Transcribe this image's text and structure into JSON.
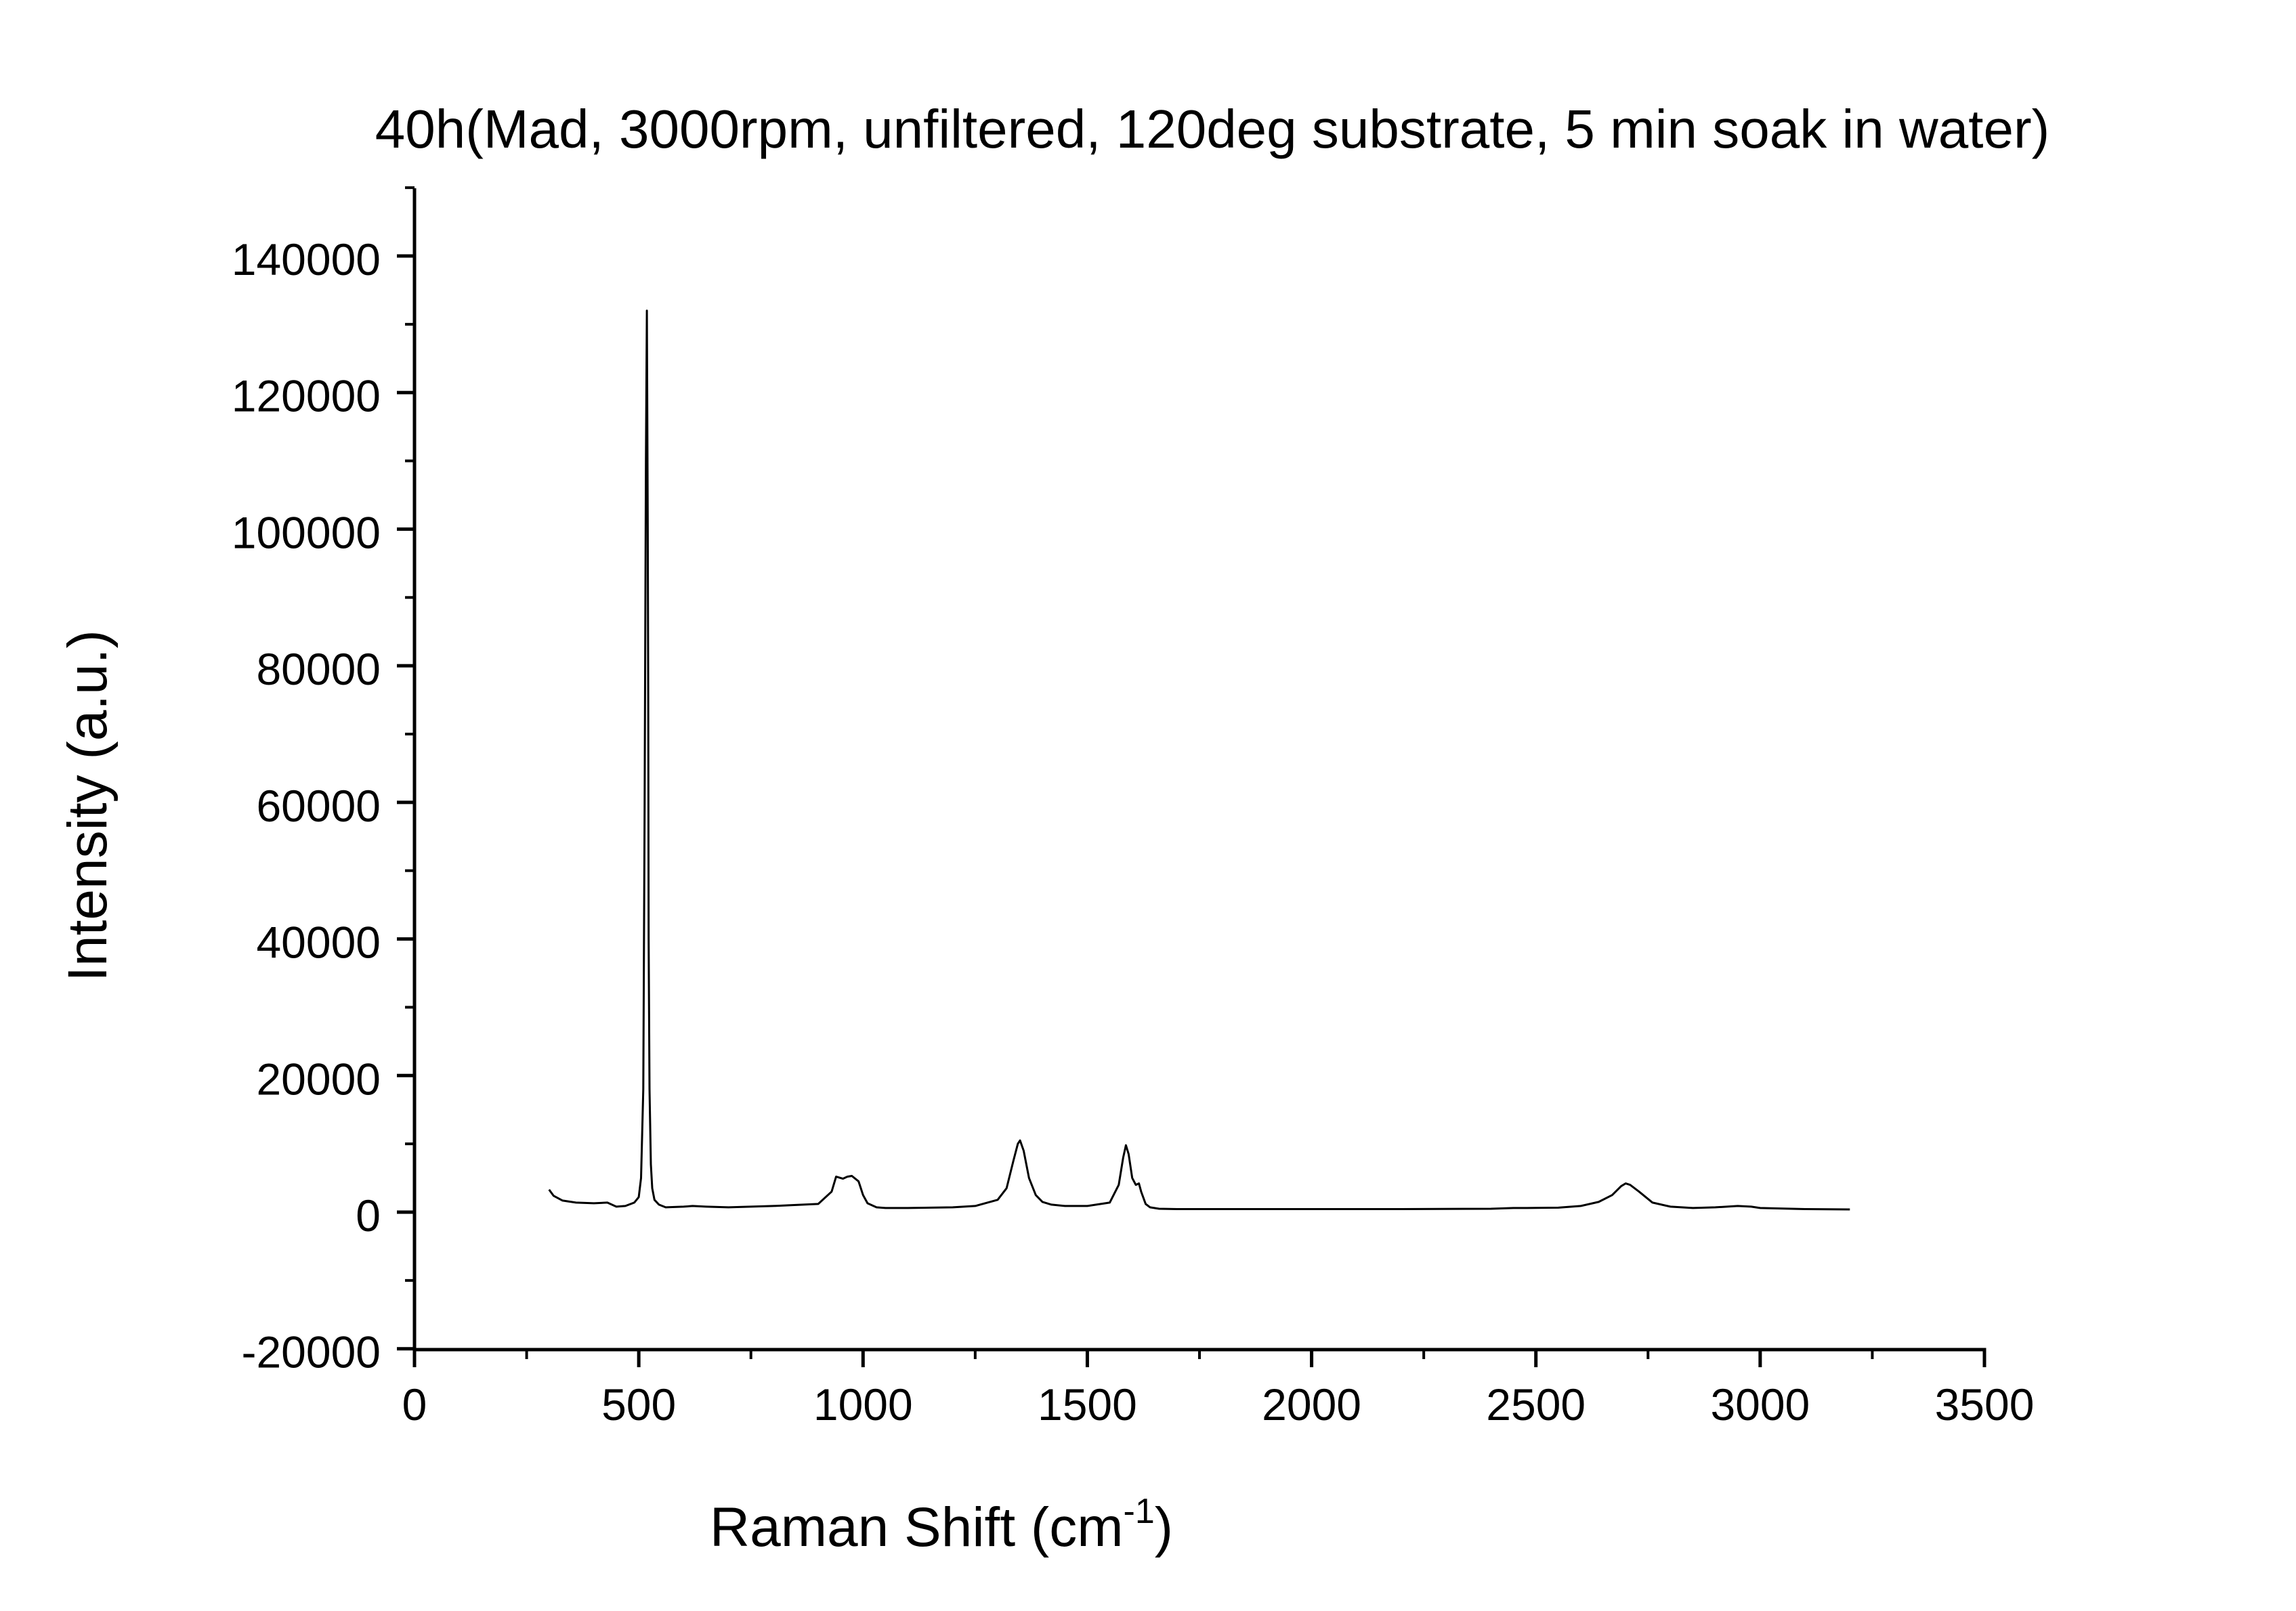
{
  "chart_data": {
    "type": "line",
    "title": "40h(Mad, 3000rpm, unfiltered, 120deg substrate, 5 min soak in water)",
    "xlabel": "Raman Shift (cm",
    "xlabel_superscript": "-1",
    "xlabel_suffix": ")",
    "ylabel": "Intensity (a.u.)",
    "xlim": [
      0,
      3500
    ],
    "ylim": [
      -20000,
      150000
    ],
    "x_ticks": [
      0,
      500,
      1000,
      1500,
      2000,
      2500,
      3000,
      3500
    ],
    "x_tick_labels": [
      "0",
      "500",
      "1000",
      "1500",
      "2000",
      "2500",
      "3000",
      "3500"
    ],
    "y_ticks": [
      -20000,
      0,
      20000,
      40000,
      60000,
      80000,
      100000,
      120000,
      140000
    ],
    "y_tick_labels": [
      "-20000",
      "0",
      "20000",
      "40000",
      "60000",
      "80000",
      "100000",
      "120000",
      "140000"
    ],
    "grid": false,
    "line_color": "#000000",
    "series": [
      {
        "x": [
          300,
          310,
          330,
          360,
          400,
          430,
          450,
          470,
          490,
          500,
          505,
          510,
          513,
          516,
          518,
          520,
          521,
          522,
          524,
          527,
          530,
          535,
          545,
          560,
          600,
          620,
          650,
          700,
          800,
          900,
          930,
          940,
          955,
          965,
          975,
          990,
          1000,
          1010,
          1030,
          1050,
          1100,
          1200,
          1250,
          1300,
          1320,
          1335,
          1345,
          1350,
          1358,
          1370,
          1385,
          1400,
          1420,
          1450,
          1500,
          1550,
          1570,
          1580,
          1586,
          1592,
          1600,
          1608,
          1615,
          1620,
          1630,
          1640,
          1660,
          1700,
          1800,
          2000,
          2200,
          2400,
          2450,
          2480,
          2550,
          2600,
          2640,
          2670,
          2690,
          2700,
          2710,
          2730,
          2760,
          2800,
          2850,
          2900,
          2950,
          2980,
          3000,
          3100,
          3200
        ],
        "y": [
          3300,
          2400,
          1700,
          1400,
          1300,
          1400,
          800,
          900,
          1400,
          2200,
          5000,
          18000,
          60000,
          110000,
          132000,
          100000,
          75000,
          40000,
          18000,
          7000,
          3500,
          1800,
          1100,
          700,
          800,
          900,
          800,
          700,
          900,
          1200,
          3000,
          5200,
          4900,
          5200,
          5300,
          4500,
          2500,
          1300,
          700,
          600,
          600,
          700,
          900,
          1800,
          3500,
          7500,
          10000,
          10500,
          9000,
          5000,
          2500,
          1500,
          1100,
          900,
          900,
          1400,
          4000,
          8000,
          9800,
          8500,
          5000,
          4000,
          4200,
          3000,
          1200,
          700,
          500,
          450,
          450,
          450,
          450,
          500,
          600,
          600,
          650,
          900,
          1500,
          2500,
          3800,
          4200,
          4000,
          3000,
          1400,
          800,
          600,
          700,
          900,
          800,
          600,
          450,
          400
        ]
      }
    ]
  }
}
